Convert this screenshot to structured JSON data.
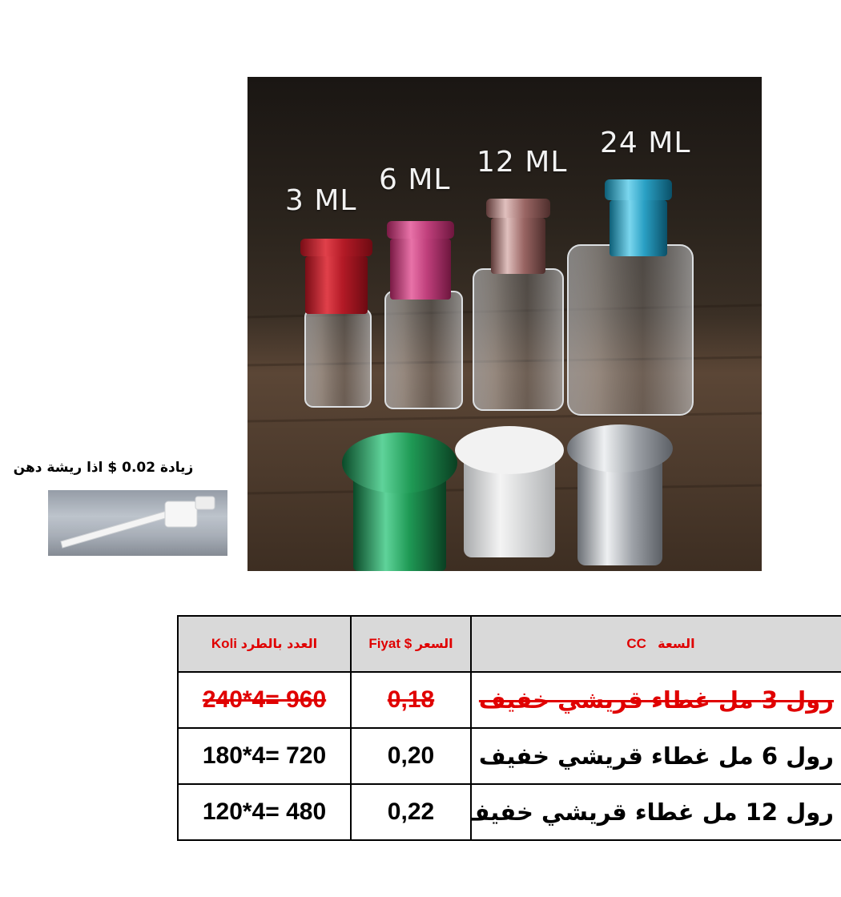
{
  "photo": {
    "labels": {
      "ml3": "3 ML",
      "ml6": "6 ML",
      "ml12": "12 ML",
      "ml24": "24 ML"
    },
    "cap_colors": {
      "red": "#c8202e",
      "pink": "#c8387a",
      "rose_gold": "#b07a78",
      "teal": "#2aa6c8",
      "green": "#1f9a55",
      "white": "#e8e8e8",
      "silver": "#b8bcc2"
    }
  },
  "note": {
    "text_prefix": "زيادة",
    "amount": "0.02",
    "text_suffix": "$ اذا ريشة دهن"
  },
  "table": {
    "headers": {
      "koli": "Koli",
      "koli_ar": "العدد بالطرد",
      "fiyat": "Fiyat $",
      "fiyat_ar": "السعر",
      "cc": "CC",
      "cc_ar": "السعة"
    },
    "rows": [
      {
        "koli": "240*4= 960",
        "price": "0,18",
        "desc": "رول 3 مل غطاء قريشي خفيف",
        "struck": true
      },
      {
        "koli": "180*4= 720",
        "price": "0,20",
        "desc": "رول 6 مل غطاء قريشي خفيف",
        "struck": false
      },
      {
        "koli": "120*4= 480",
        "price": "0,22",
        "desc": "رول 12 مل غطاء قريشي خفيف",
        "struck": false
      }
    ]
  }
}
